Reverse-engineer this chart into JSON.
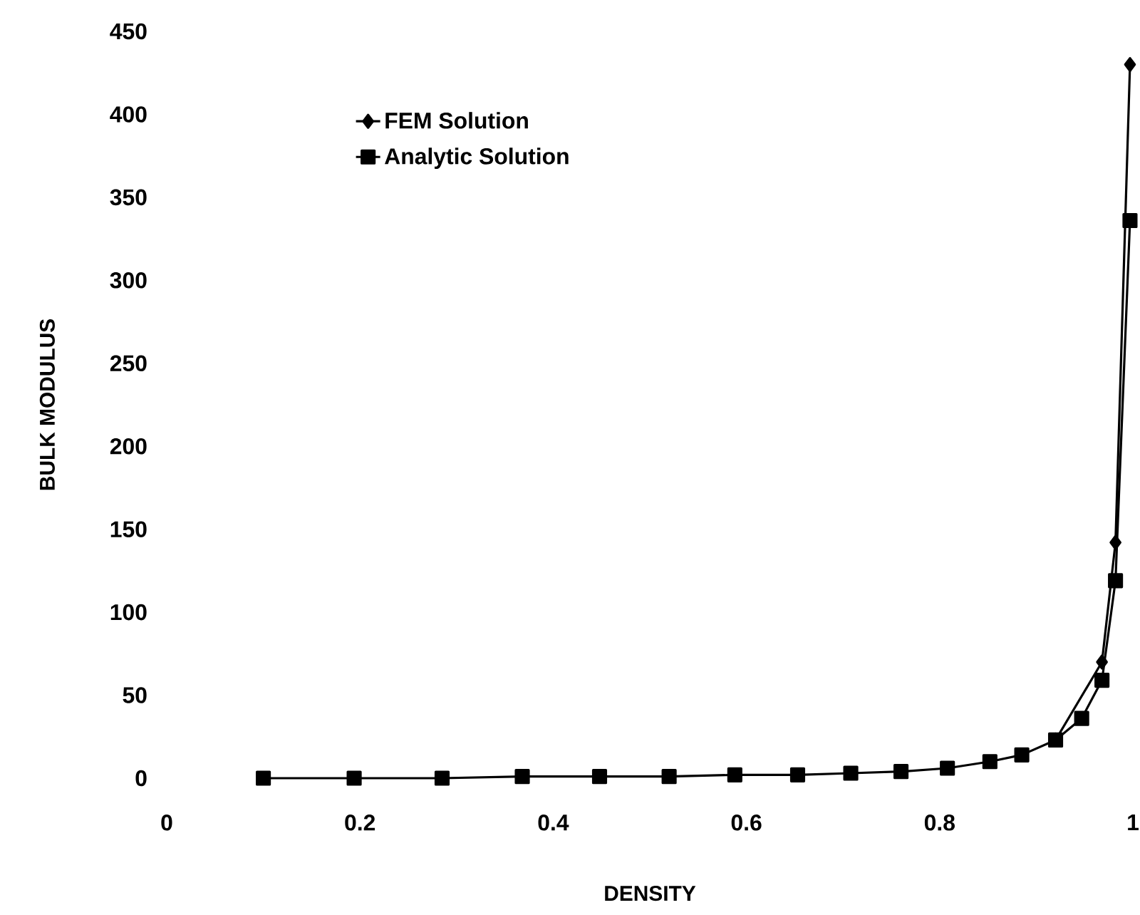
{
  "chart_data": {
    "type": "line",
    "xlabel": "DENSITY",
    "ylabel": "BULK MODULUS",
    "xlim": [
      0,
      1
    ],
    "ylim": [
      0,
      450
    ],
    "xticks": [
      0,
      0.2,
      0.4,
      0.6,
      0.8,
      1
    ],
    "yticks": [
      0,
      50,
      100,
      150,
      200,
      250,
      300,
      350,
      400,
      450
    ],
    "legend": "top left",
    "series": [
      {
        "name": "FEM Solution",
        "color": "#000000",
        "marker": "diamond",
        "x": [
          0.92,
          0.968,
          0.982,
          0.997
        ],
        "values": [
          23,
          70,
          142,
          430
        ]
      },
      {
        "name": "Analytic Solution",
        "color": "#000000",
        "marker": "square",
        "x": [
          0.1,
          0.194,
          0.285,
          0.368,
          0.448,
          0.52,
          0.588,
          0.653,
          0.708,
          0.76,
          0.808,
          0.852,
          0.885,
          0.92,
          0.947,
          0.968,
          0.982,
          0.997
        ],
        "values": [
          0,
          0,
          0,
          1,
          1,
          1,
          2,
          2,
          3,
          4,
          6,
          10,
          14,
          23,
          36,
          59,
          119,
          336
        ]
      }
    ]
  }
}
